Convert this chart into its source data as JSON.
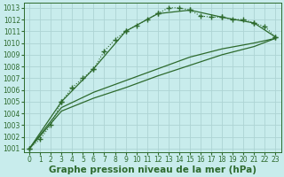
{
  "background_color": "#c8ecec",
  "grid_color": "#add4d4",
  "line_color": "#2d6a2d",
  "xlabel": "Graphe pression niveau de la mer (hPa)",
  "xlabel_fontsize": 7.5,
  "tick_fontsize": 5.5,
  "xlim": [
    -0.5,
    23.5
  ],
  "ylim": [
    1000.7,
    1013.4
  ],
  "yticks": [
    1001,
    1002,
    1003,
    1004,
    1005,
    1006,
    1007,
    1008,
    1009,
    1010,
    1011,
    1012,
    1013
  ],
  "xticks": [
    0,
    1,
    2,
    3,
    4,
    5,
    6,
    7,
    8,
    9,
    10,
    11,
    12,
    13,
    14,
    15,
    16,
    17,
    18,
    19,
    20,
    21,
    22,
    23
  ],
  "series": [
    {
      "x": [
        0,
        1,
        2,
        3,
        4,
        5,
        6,
        7,
        8,
        9,
        10,
        11,
        12,
        13,
        14,
        15,
        16,
        17,
        18,
        19,
        20,
        21,
        22,
        23
      ],
      "y": [
        1001.0,
        1001.8,
        1003.0,
        1005.0,
        1006.2,
        1007.0,
        1007.8,
        1009.3,
        1010.3,
        1011.0,
        1011.5,
        1012.0,
        1012.5,
        1013.0,
        1013.0,
        1012.8,
        1012.3,
        1012.2,
        1012.2,
        1012.0,
        1012.0,
        1011.7,
        1011.4,
        1010.5
      ],
      "marker": "+",
      "markersize": 4,
      "markeredgewidth": 1.0,
      "linewidth": 0.8,
      "linestyle": "dotted",
      "zorder": 4
    },
    {
      "x": [
        0,
        3,
        6,
        9,
        12,
        15,
        18,
        21,
        23
      ],
      "y": [
        1001.0,
        1005.0,
        1007.8,
        1011.0,
        1012.5,
        1012.8,
        1012.2,
        1011.7,
        1010.5
      ],
      "marker": "+",
      "markersize": 4,
      "markeredgewidth": 1.0,
      "linewidth": 0.9,
      "linestyle": "solid",
      "zorder": 5
    },
    {
      "x": [
        0,
        3,
        6,
        9,
        12,
        15,
        18,
        21,
        23
      ],
      "y": [
        1001.0,
        1004.5,
        1005.8,
        1006.8,
        1007.8,
        1008.8,
        1009.5,
        1010.0,
        1010.4
      ],
      "marker": null,
      "markersize": 0,
      "markeredgewidth": 0,
      "linewidth": 0.9,
      "linestyle": "solid",
      "zorder": 3
    },
    {
      "x": [
        0,
        3,
        6,
        9,
        12,
        15,
        18,
        21,
        23
      ],
      "y": [
        1001.0,
        1004.2,
        1005.3,
        1006.2,
        1007.2,
        1008.1,
        1009.0,
        1009.7,
        1010.4
      ],
      "marker": null,
      "markersize": 0,
      "markeredgewidth": 0,
      "linewidth": 0.9,
      "linestyle": "solid",
      "zorder": 3
    }
  ]
}
